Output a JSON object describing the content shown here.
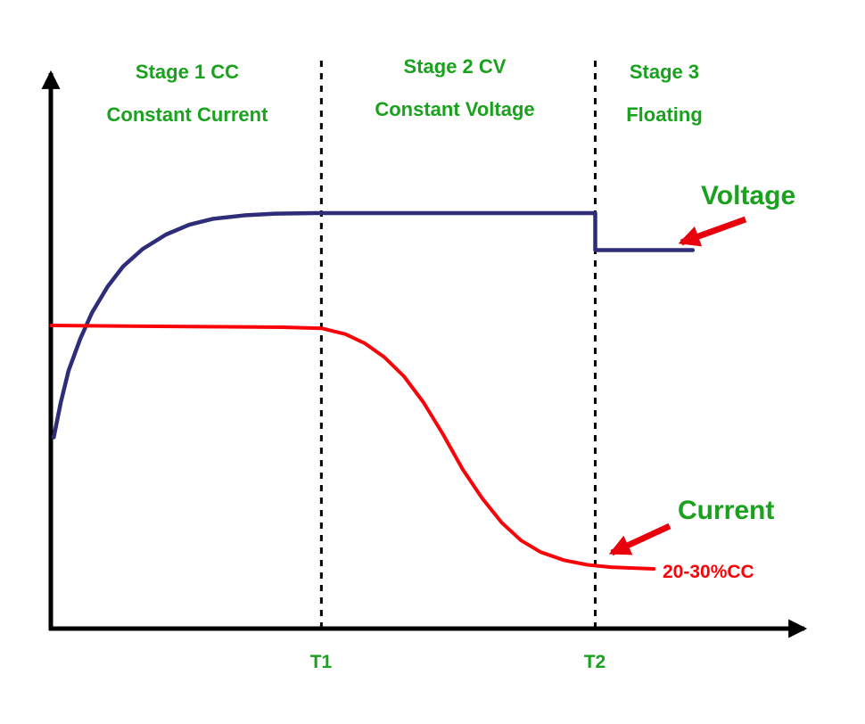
{
  "stages": [
    {
      "title": "Stage 1 CC",
      "subtitle": "Constant Current"
    },
    {
      "title": "Stage 2 CV",
      "subtitle": "Constant Voltage"
    },
    {
      "title": "Stage 3",
      "subtitle": "Floating"
    }
  ],
  "colors": {
    "stage_text": "#1aa11e",
    "voltage_line": "#2f2c79",
    "current_line": "#f80308",
    "arrow": "#e8000d",
    "axis": "#000000"
  },
  "chart_data": {
    "type": "line",
    "title": "",
    "xlabel": "",
    "ylabel": "",
    "legend_position": "none",
    "grid": false,
    "x_range_percent": [
      0,
      100
    ],
    "y_range_percent": [
      0,
      100
    ],
    "x_ticks": [
      {
        "pos": 34.9,
        "label": "T1"
      },
      {
        "pos": 70.0,
        "label": "T2"
      }
    ],
    "series": [
      {
        "name": "Voltage",
        "color": "#2f2c79",
        "width": 4.5,
        "points": [
          [
            0.6,
            33
          ],
          [
            1.5,
            39
          ],
          [
            2.5,
            44.5
          ],
          [
            4,
            50
          ],
          [
            5.5,
            54.5
          ],
          [
            7.5,
            59
          ],
          [
            9.5,
            62.5
          ],
          [
            12,
            65.5
          ],
          [
            15,
            68
          ],
          [
            18,
            69.7
          ],
          [
            21,
            70.7
          ],
          [
            25,
            71.3
          ],
          [
            29,
            71.6
          ],
          [
            34,
            71.7
          ],
          [
            70,
            71.7
          ],
          [
            70,
            65.3
          ],
          [
            82.5,
            65.3
          ]
        ]
      },
      {
        "name": "Current",
        "color": "#f80308",
        "width": 4,
        "points": [
          [
            0.3,
            52.3
          ],
          [
            10,
            52.2
          ],
          [
            20,
            52.1
          ],
          [
            30,
            52.0
          ],
          [
            35,
            51.8
          ],
          [
            38,
            50.8
          ],
          [
            40.5,
            49.2
          ],
          [
            43,
            46.8
          ],
          [
            45.5,
            43.5
          ],
          [
            48,
            39
          ],
          [
            50.5,
            33.5
          ],
          [
            53,
            27.5
          ],
          [
            55.5,
            22.5
          ],
          [
            58,
            18.3
          ],
          [
            60.5,
            15.2
          ],
          [
            63,
            13.2
          ],
          [
            66,
            11.8
          ],
          [
            69,
            11.0
          ],
          [
            72,
            10.6
          ],
          [
            77.5,
            10.3
          ]
        ]
      }
    ],
    "annotations": [
      "20-30%CC"
    ]
  }
}
